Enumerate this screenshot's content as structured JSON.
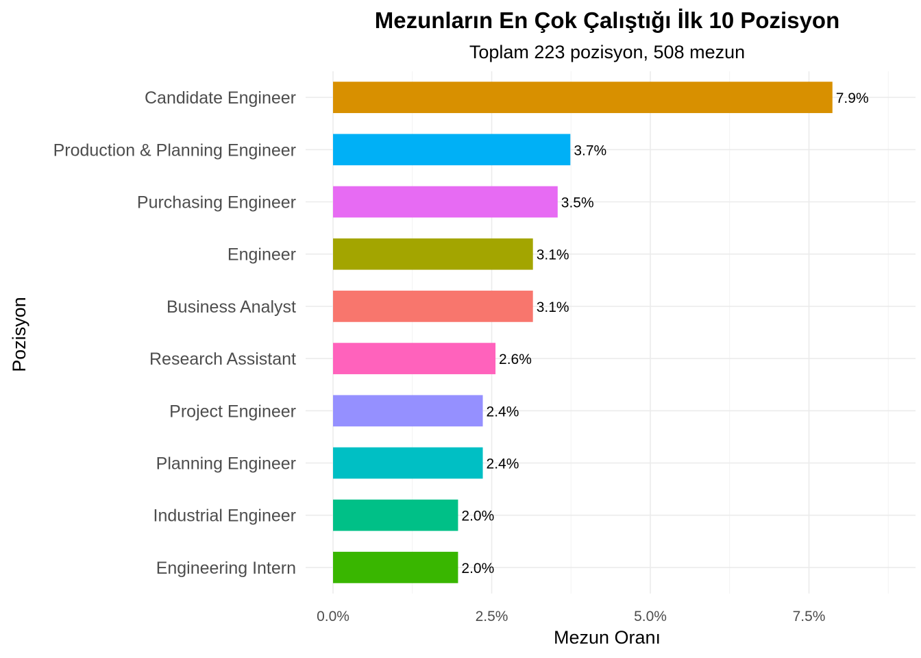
{
  "chart_data": {
    "type": "bar",
    "orientation": "horizontal",
    "title": "Mezunların En Çok Çalıştığı İlk 10 Pozisyon",
    "subtitle": "Toplam 223 pozisyon, 508 mezun",
    "xlabel": "Mezun Oranı",
    "ylabel": "Pozisyon",
    "xlim": [
      -0.4,
      8.75
    ],
    "x_ticks": [
      0,
      2.5,
      5,
      7.5
    ],
    "x_tick_labels": [
      "0.0%",
      "2.5%",
      "5.0%",
      "7.5%"
    ],
    "grid": true,
    "legend": "none",
    "categories": [
      "Candidate Engineer",
      "Production & Planning Engineer",
      "Purchasing Engineer",
      "Engineer",
      "Business Analyst",
      "Research Assistant",
      "Project Engineer",
      "Planning Engineer",
      "Industrial Engineer",
      "Engineering Intern"
    ],
    "values": [
      7.87,
      3.74,
      3.54,
      3.15,
      3.15,
      2.56,
      2.36,
      2.36,
      1.97,
      1.97
    ],
    "data_labels": [
      "7.9%",
      "3.7%",
      "3.5%",
      "3.1%",
      "3.1%",
      "2.6%",
      "2.4%",
      "2.4%",
      "2.0%",
      "2.0%"
    ],
    "colors": [
      "#D89000",
      "#00B0F6",
      "#E76BF3",
      "#A3A500",
      "#F8766D",
      "#FF62BC",
      "#9590FF",
      "#00BFC4",
      "#00C087",
      "#39B600"
    ]
  }
}
